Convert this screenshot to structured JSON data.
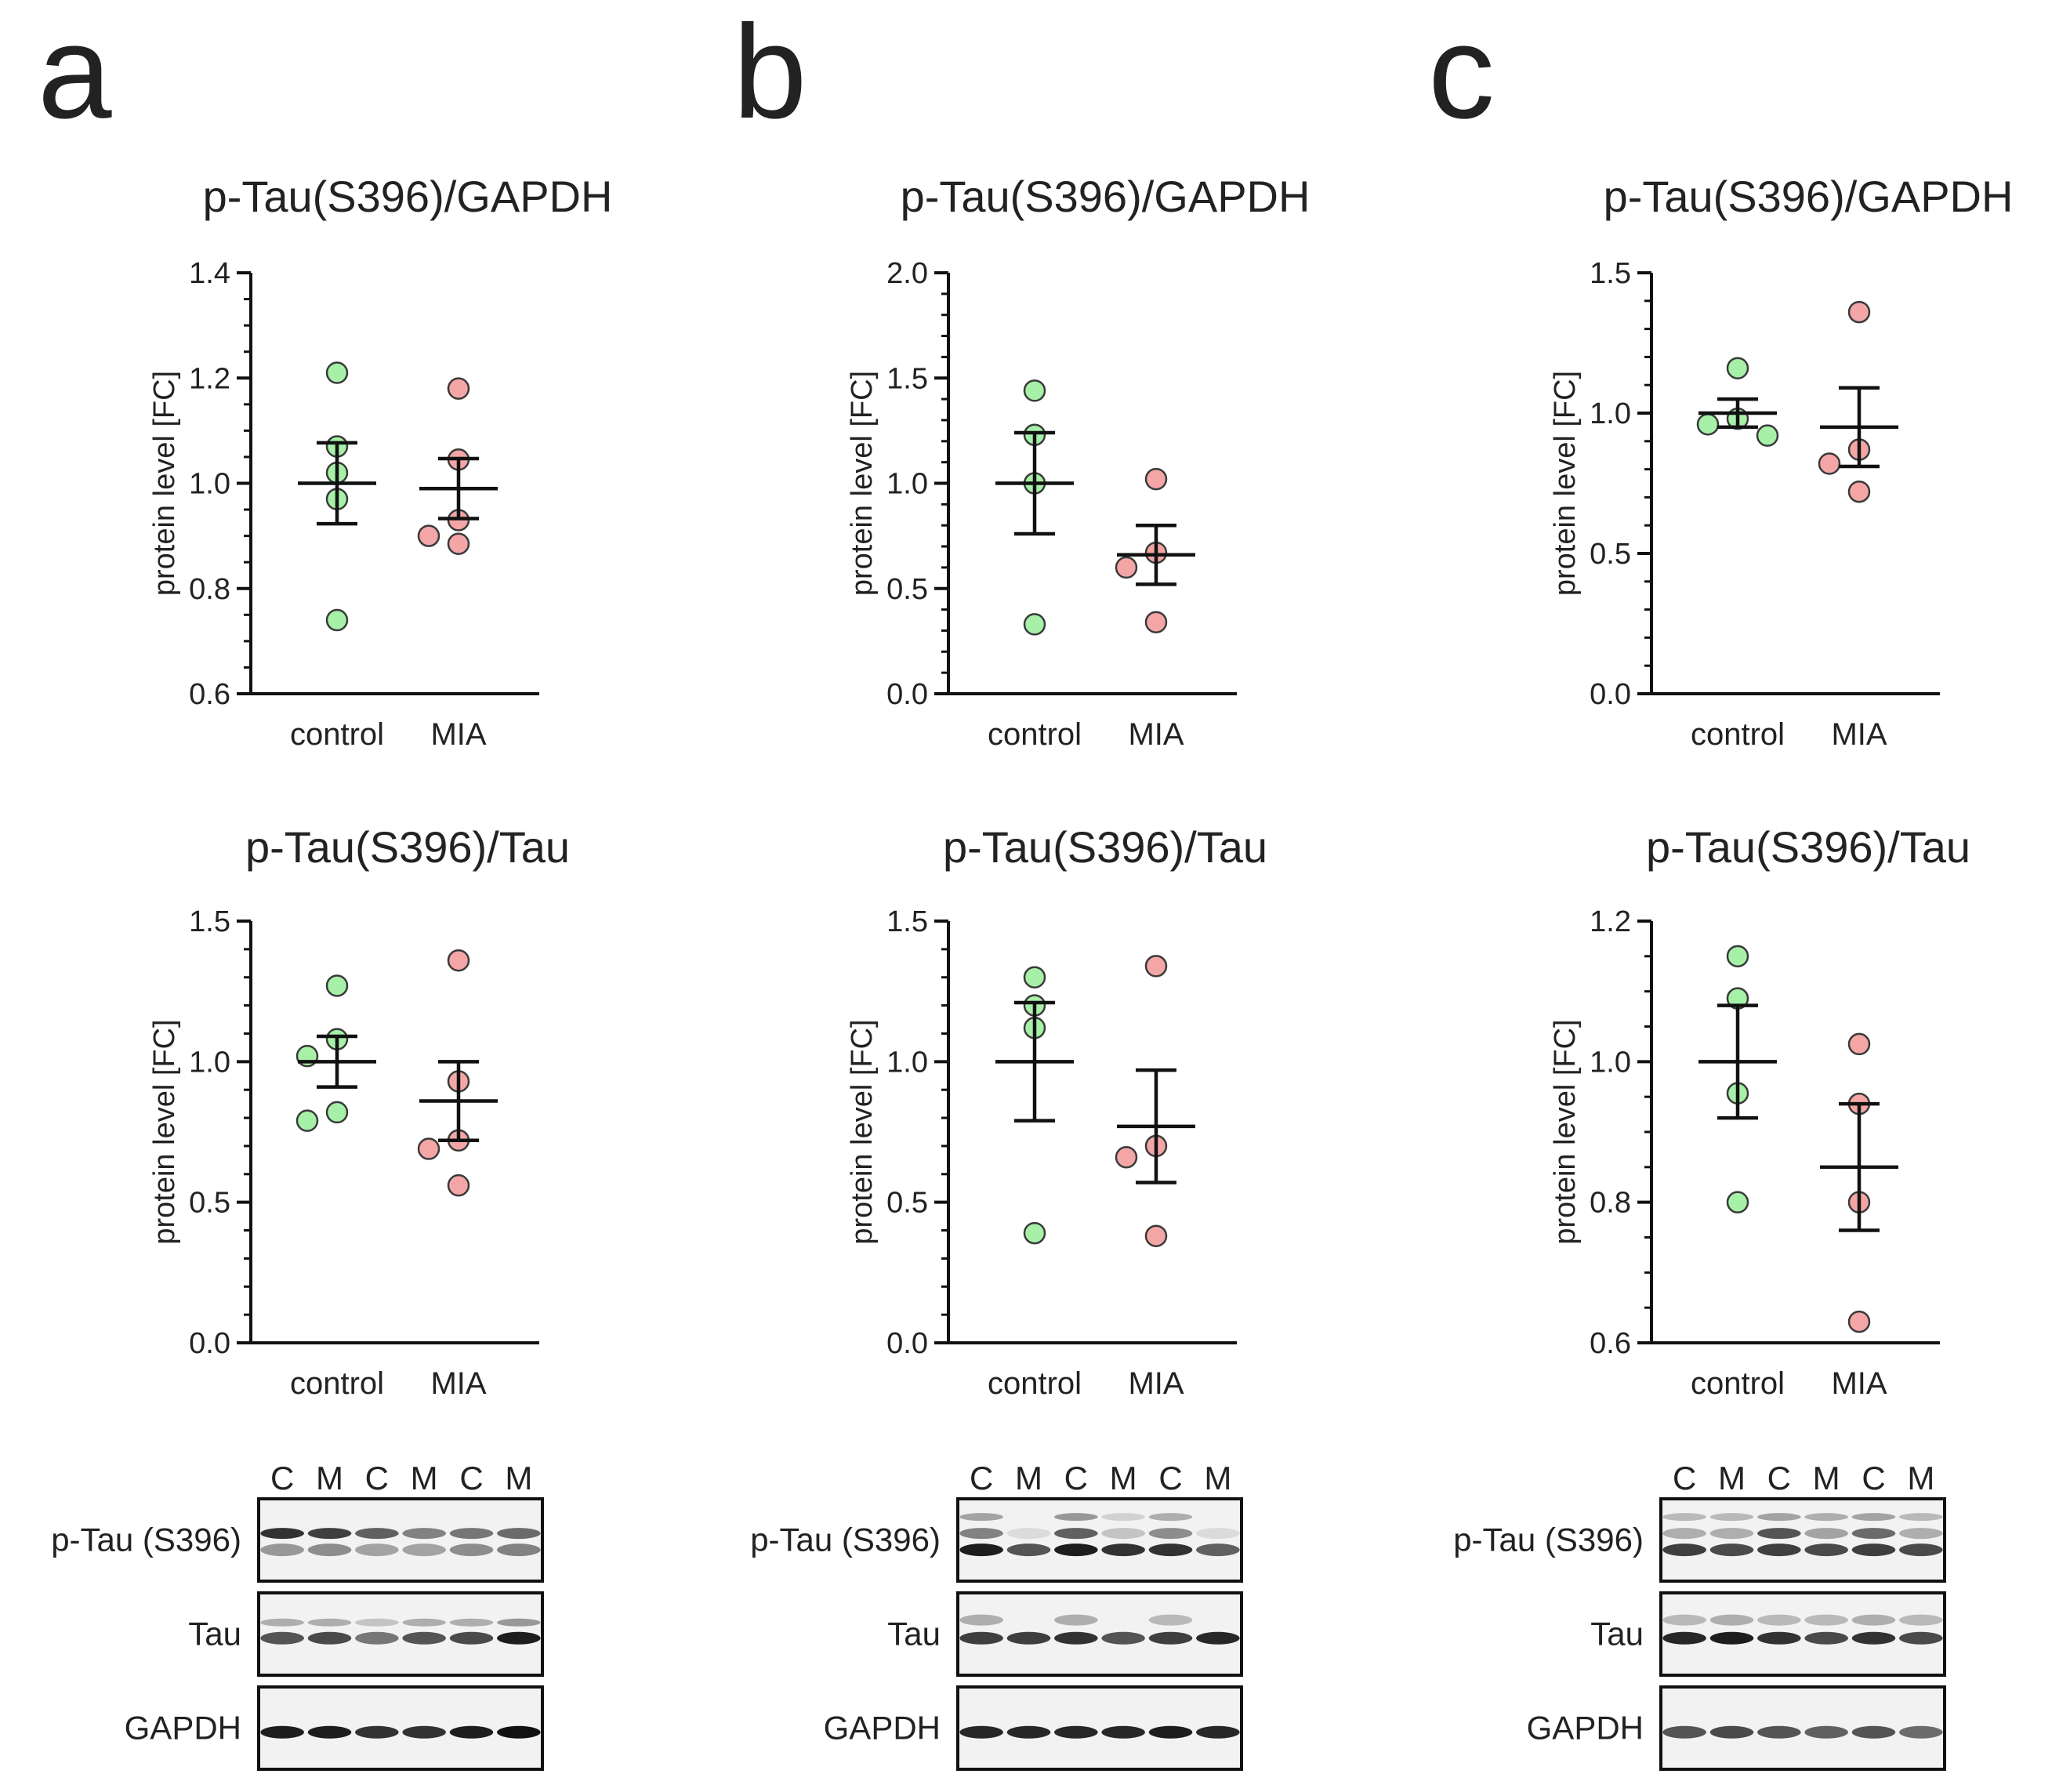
{
  "panel_letters": [
    "a",
    "b",
    "c"
  ],
  "colors": {
    "control_fill": "#a6f0a8",
    "control_stroke": "#3a3a3a",
    "mia_fill": "#f4a6a6",
    "mia_stroke": "#3a3a3a",
    "axis": "#111111",
    "blot_bg": "#f2f2f2"
  },
  "chart_data": [
    {
      "id": "a-gapdh",
      "panel": "a",
      "type": "scatter",
      "title": "p-Tau(S396)/GAPDH",
      "ylabel": "protein level [FC]",
      "xlabel": "",
      "categories": [
        "control",
        "MIA"
      ],
      "ylim": [
        0.6,
        1.4
      ],
      "yticks": [
        0.6,
        0.8,
        1.0,
        1.2,
        1.4
      ],
      "ytick_labels": [
        "0.6",
        "0.8",
        "1.0",
        "1.2",
        "1.4"
      ],
      "minor_step": 0.05,
      "series": [
        {
          "name": "control",
          "values": [
            1.21,
            1.07,
            1.02,
            0.97,
            0.74
          ],
          "mean": 1.0,
          "sem": 0.077
        },
        {
          "name": "MIA",
          "values": [
            1.18,
            1.045,
            0.93,
            0.885,
            0.9
          ],
          "mean": 0.99,
          "sem": 0.057
        }
      ]
    },
    {
      "id": "a-tau",
      "panel": "a",
      "type": "scatter",
      "title": "p-Tau(S396)/Tau",
      "ylabel": "protein level [FC]",
      "xlabel": "",
      "categories": [
        "control",
        "MIA"
      ],
      "ylim": [
        0.0,
        1.5
      ],
      "yticks": [
        0.0,
        0.5,
        1.0,
        1.5
      ],
      "ytick_labels": [
        "0.0",
        "0.5",
        "1.0",
        "1.5"
      ],
      "minor_step": 0.1,
      "series": [
        {
          "name": "control",
          "values": [
            1.27,
            1.08,
            1.02,
            0.82,
            0.79
          ],
          "mean": 1.0,
          "sem": 0.09
        },
        {
          "name": "MIA",
          "values": [
            1.36,
            0.93,
            0.72,
            0.69,
            0.56
          ],
          "mean": 0.86,
          "sem": 0.14
        }
      ]
    },
    {
      "id": "b-gapdh",
      "panel": "b",
      "type": "scatter",
      "title": "p-Tau(S396)/GAPDH",
      "ylabel": "protein level [FC]",
      "xlabel": "",
      "categories": [
        "control",
        "MIA"
      ],
      "ylim": [
        0.0,
        2.0
      ],
      "yticks": [
        0.0,
        0.5,
        1.0,
        1.5,
        2.0
      ],
      "ytick_labels": [
        "0.0",
        "0.5",
        "1.0",
        "1.5",
        "2.0"
      ],
      "minor_step": 0.1,
      "series": [
        {
          "name": "control",
          "values": [
            1.44,
            1.23,
            1.0,
            0.33
          ],
          "mean": 1.0,
          "sem": 0.24
        },
        {
          "name": "MIA",
          "values": [
            1.02,
            0.67,
            0.6,
            0.34
          ],
          "mean": 0.66,
          "sem": 0.14
        }
      ]
    },
    {
      "id": "b-tau",
      "panel": "b",
      "type": "scatter",
      "title": "p-Tau(S396)/Tau",
      "ylabel": "protein level [FC]",
      "xlabel": "",
      "categories": [
        "control",
        "MIA"
      ],
      "ylim": [
        0.0,
        1.5
      ],
      "yticks": [
        0.0,
        0.5,
        1.0,
        1.5
      ],
      "ytick_labels": [
        "0.0",
        "0.5",
        "1.0",
        "1.5"
      ],
      "minor_step": 0.1,
      "series": [
        {
          "name": "control",
          "values": [
            1.3,
            1.2,
            1.12,
            0.39
          ],
          "mean": 1.0,
          "sem": 0.21
        },
        {
          "name": "MIA",
          "values": [
            1.34,
            0.7,
            0.66,
            0.38
          ],
          "mean": 0.77,
          "sem": 0.2
        }
      ]
    },
    {
      "id": "c-gapdh",
      "panel": "c",
      "type": "scatter",
      "title": "p-Tau(S396)/GAPDH",
      "ylabel": "protein level [FC]",
      "xlabel": "",
      "categories": [
        "control",
        "MIA"
      ],
      "ylim": [
        0.0,
        1.5
      ],
      "yticks": [
        0.0,
        0.5,
        1.0,
        1.5
      ],
      "ytick_labels": [
        "0.0",
        "0.5",
        "1.0",
        "1.5"
      ],
      "minor_step": 0.1,
      "series": [
        {
          "name": "control",
          "values": [
            1.16,
            0.98,
            0.96,
            0.92
          ],
          "mean": 1.0,
          "sem": 0.05
        },
        {
          "name": "MIA",
          "values": [
            1.36,
            0.87,
            0.82,
            0.72
          ],
          "mean": 0.95,
          "sem": 0.14
        }
      ]
    },
    {
      "id": "c-tau",
      "panel": "c",
      "type": "scatter",
      "title": "p-Tau(S396)/Tau",
      "ylabel": "protein level [FC]",
      "xlabel": "",
      "categories": [
        "control",
        "MIA"
      ],
      "ylim": [
        0.6,
        1.2
      ],
      "yticks": [
        0.6,
        0.8,
        1.0,
        1.2
      ],
      "ytick_labels": [
        "0.6",
        "0.8",
        "1.0",
        "1.2"
      ],
      "minor_step": 0.05,
      "series": [
        {
          "name": "control",
          "values": [
            1.15,
            1.09,
            0.955,
            0.8
          ],
          "mean": 1.0,
          "sem": 0.08
        },
        {
          "name": "MIA",
          "values": [
            1.025,
            0.94,
            0.8,
            0.63
          ],
          "mean": 0.85,
          "sem": 0.09
        }
      ]
    }
  ],
  "blots": [
    {
      "panel": "a",
      "lanes": [
        "C",
        "M",
        "C",
        "M",
        "C",
        "M"
      ],
      "rows": [
        {
          "label": "p-Tau (S396)",
          "upper_band": [
            0.85,
            0.8,
            0.65,
            0.5,
            0.55,
            0.6
          ],
          "lower_band": [
            0.4,
            0.45,
            0.35,
            0.35,
            0.45,
            0.5
          ],
          "faint_band": [
            0,
            0,
            0,
            0,
            0,
            0
          ]
        },
        {
          "label": "Tau",
          "upper_band": [
            0,
            0,
            0,
            0,
            0,
            0
          ],
          "lower_band": [
            0.7,
            0.75,
            0.55,
            0.7,
            0.75,
            0.95
          ],
          "faint_band": [
            0.3,
            0.3,
            0.2,
            0.3,
            0.3,
            0.4
          ]
        },
        {
          "label": "GAPDH",
          "upper_band": [
            0,
            0,
            0,
            0,
            0,
            0
          ],
          "lower_band": [
            0.95,
            0.95,
            0.85,
            0.85,
            0.95,
            1.0
          ],
          "faint_band": [
            0,
            0,
            0,
            0,
            0,
            0
          ]
        }
      ]
    },
    {
      "panel": "b",
      "lanes": [
        "C",
        "M",
        "C",
        "M",
        "C",
        "M"
      ],
      "rows": [
        {
          "label": "p-Tau (S396)",
          "upper_band": [
            0.5,
            0.1,
            0.65,
            0.2,
            0.45,
            0.1
          ],
          "lower_band": [
            0.95,
            0.7,
            0.95,
            0.85,
            0.85,
            0.65
          ],
          "faint_band": [
            0.35,
            0,
            0.4,
            0.15,
            0.3,
            0
          ]
        },
        {
          "label": "Tau",
          "upper_band": [
            0.3,
            0,
            0.3,
            0,
            0.25,
            0
          ],
          "lower_band": [
            0.8,
            0.8,
            0.85,
            0.7,
            0.8,
            0.9
          ],
          "faint_band": [
            0,
            0,
            0,
            0,
            0,
            0
          ]
        },
        {
          "label": "GAPDH",
          "upper_band": [
            0,
            0,
            0,
            0,
            0,
            0
          ],
          "lower_band": [
            0.9,
            0.9,
            0.9,
            0.9,
            0.95,
            0.9
          ],
          "faint_band": [
            0,
            0,
            0,
            0,
            0,
            0
          ]
        }
      ]
    },
    {
      "panel": "c",
      "lanes": [
        "C",
        "M",
        "C",
        "M",
        "C",
        "M"
      ],
      "rows": [
        {
          "label": "p-Tau (S396)",
          "upper_band": [
            0.3,
            0.3,
            0.7,
            0.35,
            0.6,
            0.3
          ],
          "lower_band": [
            0.8,
            0.75,
            0.8,
            0.75,
            0.8,
            0.75
          ],
          "faint_band": [
            0.25,
            0.25,
            0.35,
            0.3,
            0.35,
            0.25
          ]
        },
        {
          "label": "Tau",
          "upper_band": [
            0.25,
            0.3,
            0.25,
            0.25,
            0.3,
            0.25
          ],
          "lower_band": [
            0.9,
            0.95,
            0.85,
            0.75,
            0.85,
            0.75
          ],
          "faint_band": [
            0,
            0,
            0,
            0,
            0,
            0
          ]
        },
        {
          "label": "GAPDH",
          "upper_band": [
            0,
            0,
            0,
            0,
            0,
            0
          ],
          "lower_band": [
            0.7,
            0.75,
            0.7,
            0.65,
            0.7,
            0.6
          ],
          "faint_band": [
            0,
            0,
            0,
            0,
            0,
            0
          ]
        }
      ]
    }
  ]
}
